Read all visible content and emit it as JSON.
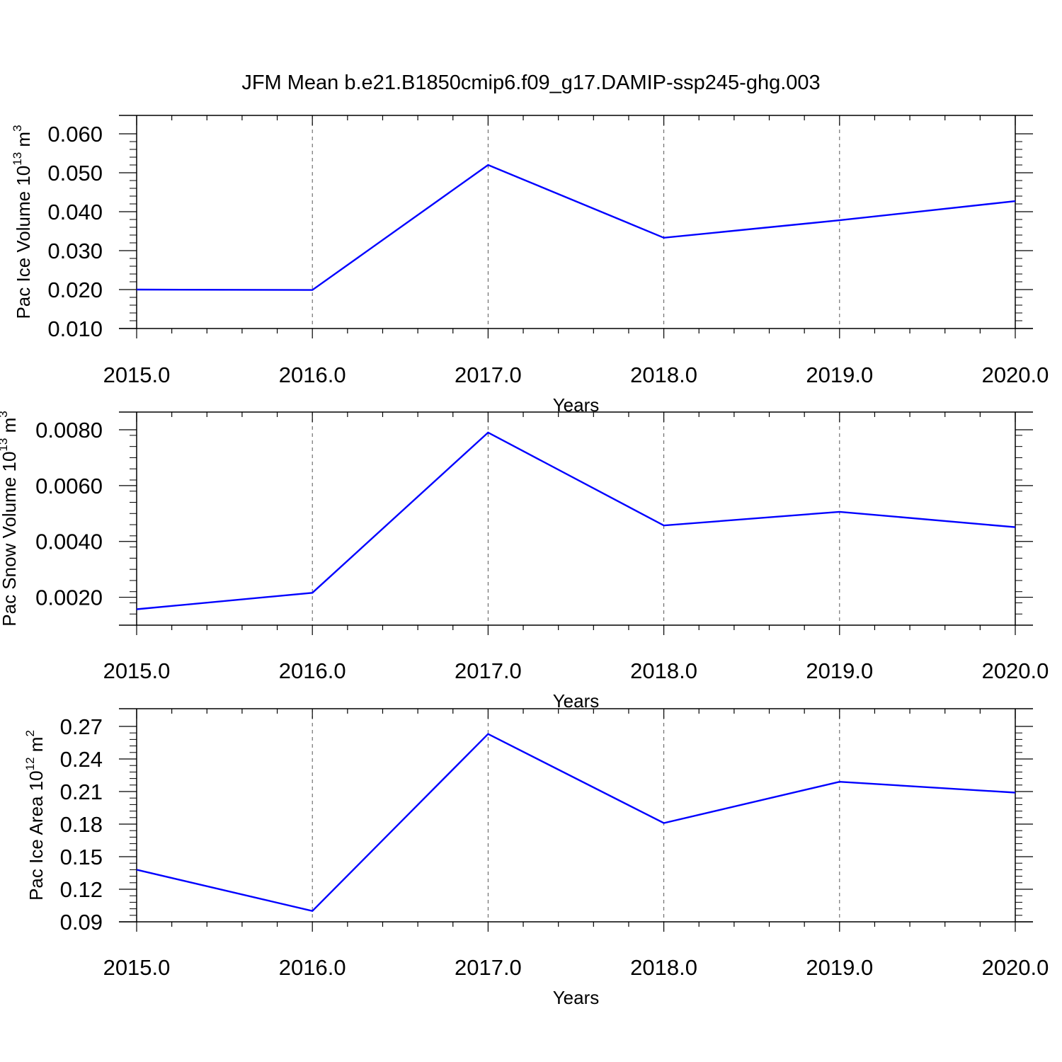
{
  "figure_title": "JFM Mean b.e21.B1850cmip6.f09_g17.DAMIP-ssp245-ghg.003",
  "colors": {
    "line": "#0000ff",
    "axis": "#000000",
    "grid": "#555555"
  },
  "chart_data": [
    {
      "type": "line",
      "xlabel": "Years",
      "ylabel": {
        "text": "Pac Ice Volume 10",
        "exp1": "13",
        "unit": " m",
        "exp2": "3"
      },
      "x_ticks": [
        "2015.0",
        "2016.0",
        "2017.0",
        "2018.0",
        "2019.0",
        "2020.0"
      ],
      "y_ticks": [
        "0.010",
        "0.020",
        "0.030",
        "0.040",
        "0.050",
        "0.060"
      ],
      "xlim": [
        2015,
        2020
      ],
      "ylim": [
        0.01,
        0.06
      ],
      "grid": "vertical dashed at major x ticks",
      "x": [
        2015,
        2016,
        2017,
        2018,
        2019,
        2020
      ],
      "y": [
        0.02,
        0.0199,
        0.052,
        0.0333,
        0.0378,
        0.0427
      ]
    },
    {
      "type": "line",
      "xlabel": "Years",
      "ylabel": {
        "text": "Pac Snow Volume 10",
        "exp1": "13",
        "unit": " m",
        "exp2": "3"
      },
      "x_ticks": [
        "2015.0",
        "2016.0",
        "2017.0",
        "2018.0",
        "2019.0",
        "2020.0"
      ],
      "y_ticks": [
        "0.0020",
        "0.0040",
        "0.0060",
        "0.0080"
      ],
      "xlim": [
        2015,
        2020
      ],
      "ylim": [
        0.001,
        0.008
      ],
      "grid": "vertical dashed at major x ticks",
      "x": [
        2015,
        2016,
        2017,
        2018,
        2019,
        2020
      ],
      "y": [
        0.00157,
        0.00216,
        0.0079,
        0.00457,
        0.00506,
        0.00451
      ]
    },
    {
      "type": "line",
      "xlabel": "Years",
      "ylabel": {
        "text": "Pac Ice Area 10",
        "exp1": "12",
        "unit": " m",
        "exp2": "2"
      },
      "x_ticks": [
        "2015.0",
        "2016.0",
        "2017.0",
        "2018.0",
        "2019.0",
        "2020.0"
      ],
      "y_ticks": [
        "0.09",
        "0.12",
        "0.15",
        "0.18",
        "0.21",
        "0.24",
        "0.27"
      ],
      "xlim": [
        2015,
        2020
      ],
      "ylim": [
        0.09,
        0.27
      ],
      "grid": "vertical dashed at major x ticks",
      "x": [
        2015,
        2016,
        2017,
        2018,
        2019,
        2020
      ],
      "y": [
        0.138,
        0.1,
        0.263,
        0.181,
        0.219,
        0.209
      ]
    }
  ]
}
